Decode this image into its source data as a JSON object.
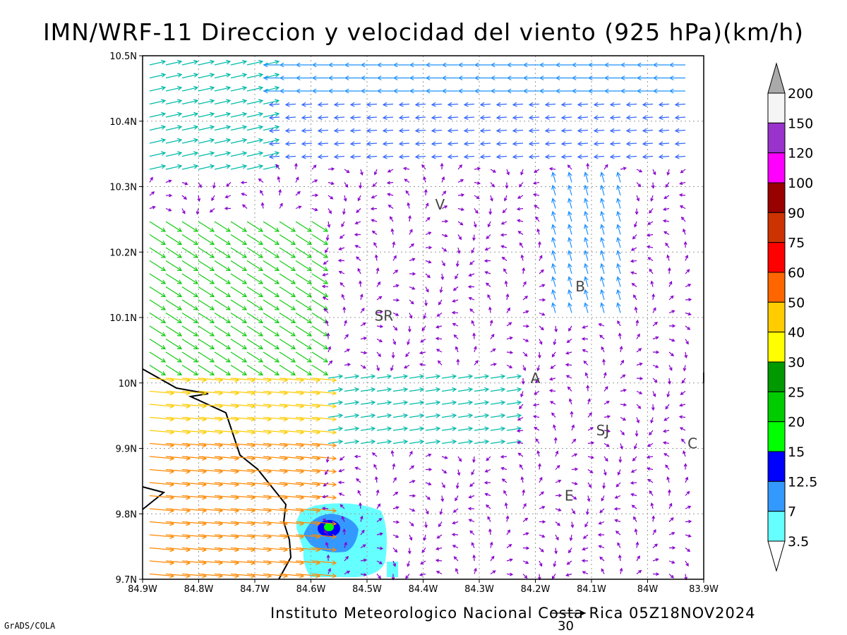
{
  "title": "IMN/WRF-11 Direccion y velocidad del viento (925 hPa)(km/h)",
  "footer": "Instituto Meteorologico Nacional Costa Rica 05Z18NOV2024",
  "credit": "GrADS/COLA",
  "reference_vector_label": "30",
  "x_ticks": [
    "84.9W",
    "84.8W",
    "84.7W",
    "84.6W",
    "84.5W",
    "84.4W",
    "84.3W",
    "84.2W",
    "84.1W",
    "84W",
    "83.9W"
  ],
  "y_ticks": [
    "10.5N",
    "10.4N",
    "10.3N",
    "10.2N",
    "10.1N",
    "10N",
    "9.9N",
    "9.8N",
    "9.7N"
  ],
  "colorbar": {
    "levels": [
      "3.5",
      "7",
      "12.5",
      "15",
      "20",
      "25",
      "30",
      "40",
      "50",
      "60",
      "75",
      "90",
      "100",
      "120",
      "150",
      "200"
    ],
    "colors": [
      "#ffffff",
      "#66ffff",
      "#3399ff",
      "#0000ff",
      "#00ff00",
      "#00cc00",
      "#009900",
      "#ffff00",
      "#ffcc00",
      "#ff6600",
      "#ff0000",
      "#cc3300",
      "#990000",
      "#ff00ff",
      "#9933cc",
      "#f5f5f5",
      "#aaaaaa"
    ]
  },
  "cities": [
    {
      "label": "V",
      "lon": -84.37,
      "lat": 10.265
    },
    {
      "label": "B",
      "lon": -84.12,
      "lat": 10.14
    },
    {
      "label": "SR",
      "lon": -84.47,
      "lat": 10.095
    },
    {
      "label": "A",
      "lon": -84.2,
      "lat": 10.0
    },
    {
      "label": "SJ",
      "lon": -84.08,
      "lat": 9.92
    },
    {
      "label": "C",
      "lon": -83.92,
      "lat": 9.9
    },
    {
      "label": "E",
      "lon": -84.14,
      "lat": 9.82
    },
    {
      "label": "I",
      "lon": -83.9,
      "lat": 10.0
    }
  ],
  "map_extent": {
    "lon": [
      -84.9,
      -83.9
    ],
    "lat": [
      9.7,
      10.5
    ]
  }
}
